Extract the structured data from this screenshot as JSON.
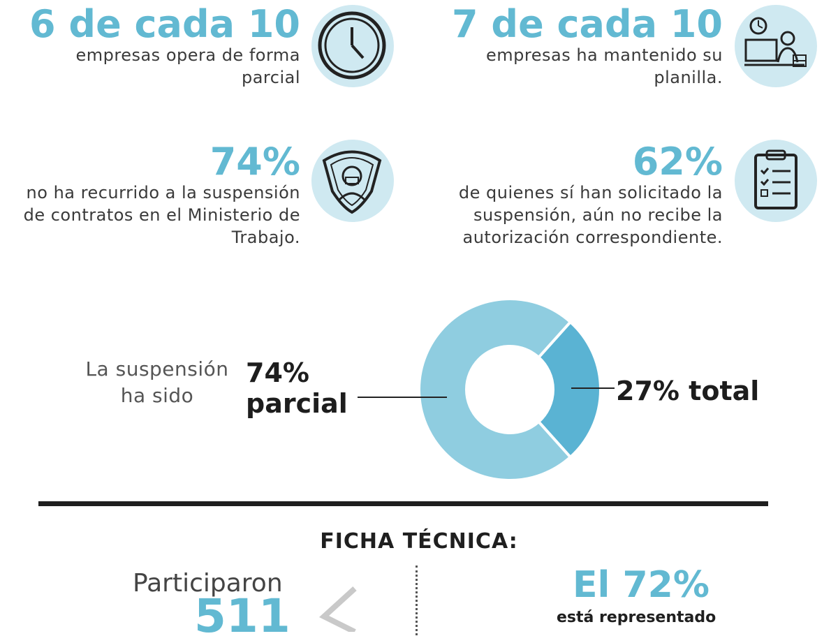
{
  "stats": [
    {
      "value": "6 de cada 10",
      "text": "empresas opera de forma parcial",
      "icon": "clock-icon"
    },
    {
      "value": "7 de cada 10",
      "text": "empresas ha mantenido su planilla.",
      "icon": "worker-desk-icon"
    },
    {
      "value": "74%",
      "text": "no ha recurrido a la suspensión de contratos en el Ministerio de Trabajo.",
      "icon": "masked-person-shield-icon"
    },
    {
      "value": "62%",
      "text": "de quienes sí han solicitado la suspensión, aún no recibe la autorización correspondiente.",
      "icon": "clipboard-checklist-icon"
    }
  ],
  "donut": {
    "label": "La suspensión ha sido",
    "partial_callout": "74% parcial",
    "total_callout": "27% total"
  },
  "chart_data": {
    "type": "pie",
    "title": "La suspensión ha sido",
    "categories": [
      "parcial",
      "total"
    ],
    "values": [
      74,
      27
    ],
    "units": "%",
    "colors": [
      "#8fcde0",
      "#5ab3d3"
    ]
  },
  "ficha": {
    "title": "FICHA TÉCNICA:",
    "left_label": "Participaron",
    "left_number": "511",
    "right_value": "El 72%",
    "right_text": "está representado"
  },
  "colors": {
    "accent": "#62b9d2",
    "icon_bg": "#cfe9f1",
    "slice_partial": "#8fcde0",
    "slice_total": "#5ab3d3"
  }
}
